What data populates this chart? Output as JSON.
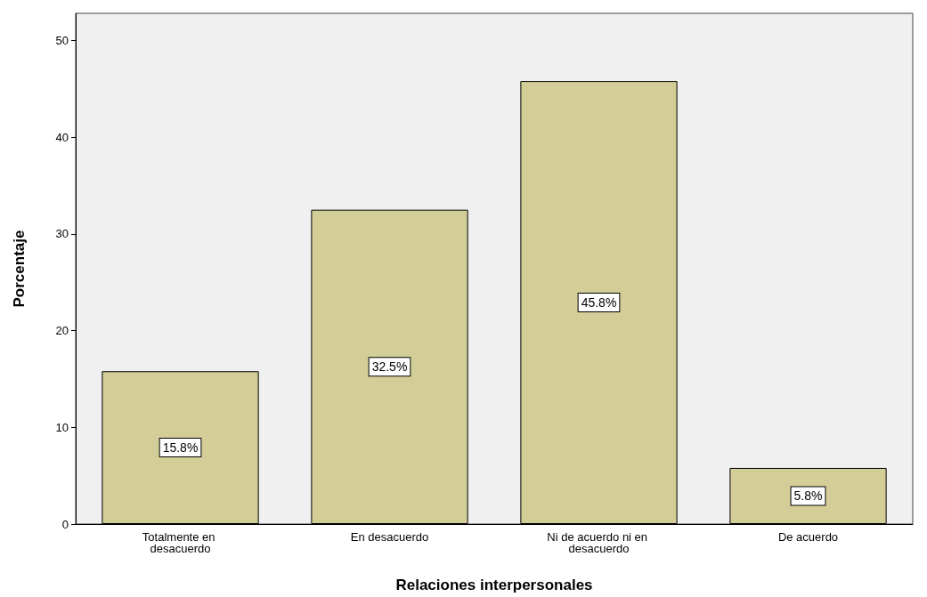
{
  "chart_data": {
    "type": "bar",
    "xlabel": "Relaciones interpersonales",
    "ylabel": "Porcentaje",
    "categories": [
      "Totalmente en desacuerdo",
      "En desacuerdo",
      "Ni de acuerdo ni en desacuerdo",
      "De acuerdo"
    ],
    "values": [
      15.8,
      32.5,
      45.8,
      5.8
    ],
    "value_labels": [
      "15.8%",
      "32.5%",
      "45.8%",
      "5.8%"
    ],
    "color": "#d3ce97",
    "ylim": [
      0,
      52.8
    ],
    "yticks": [
      0,
      10,
      20,
      30,
      40,
      50
    ],
    "grid": false
  }
}
